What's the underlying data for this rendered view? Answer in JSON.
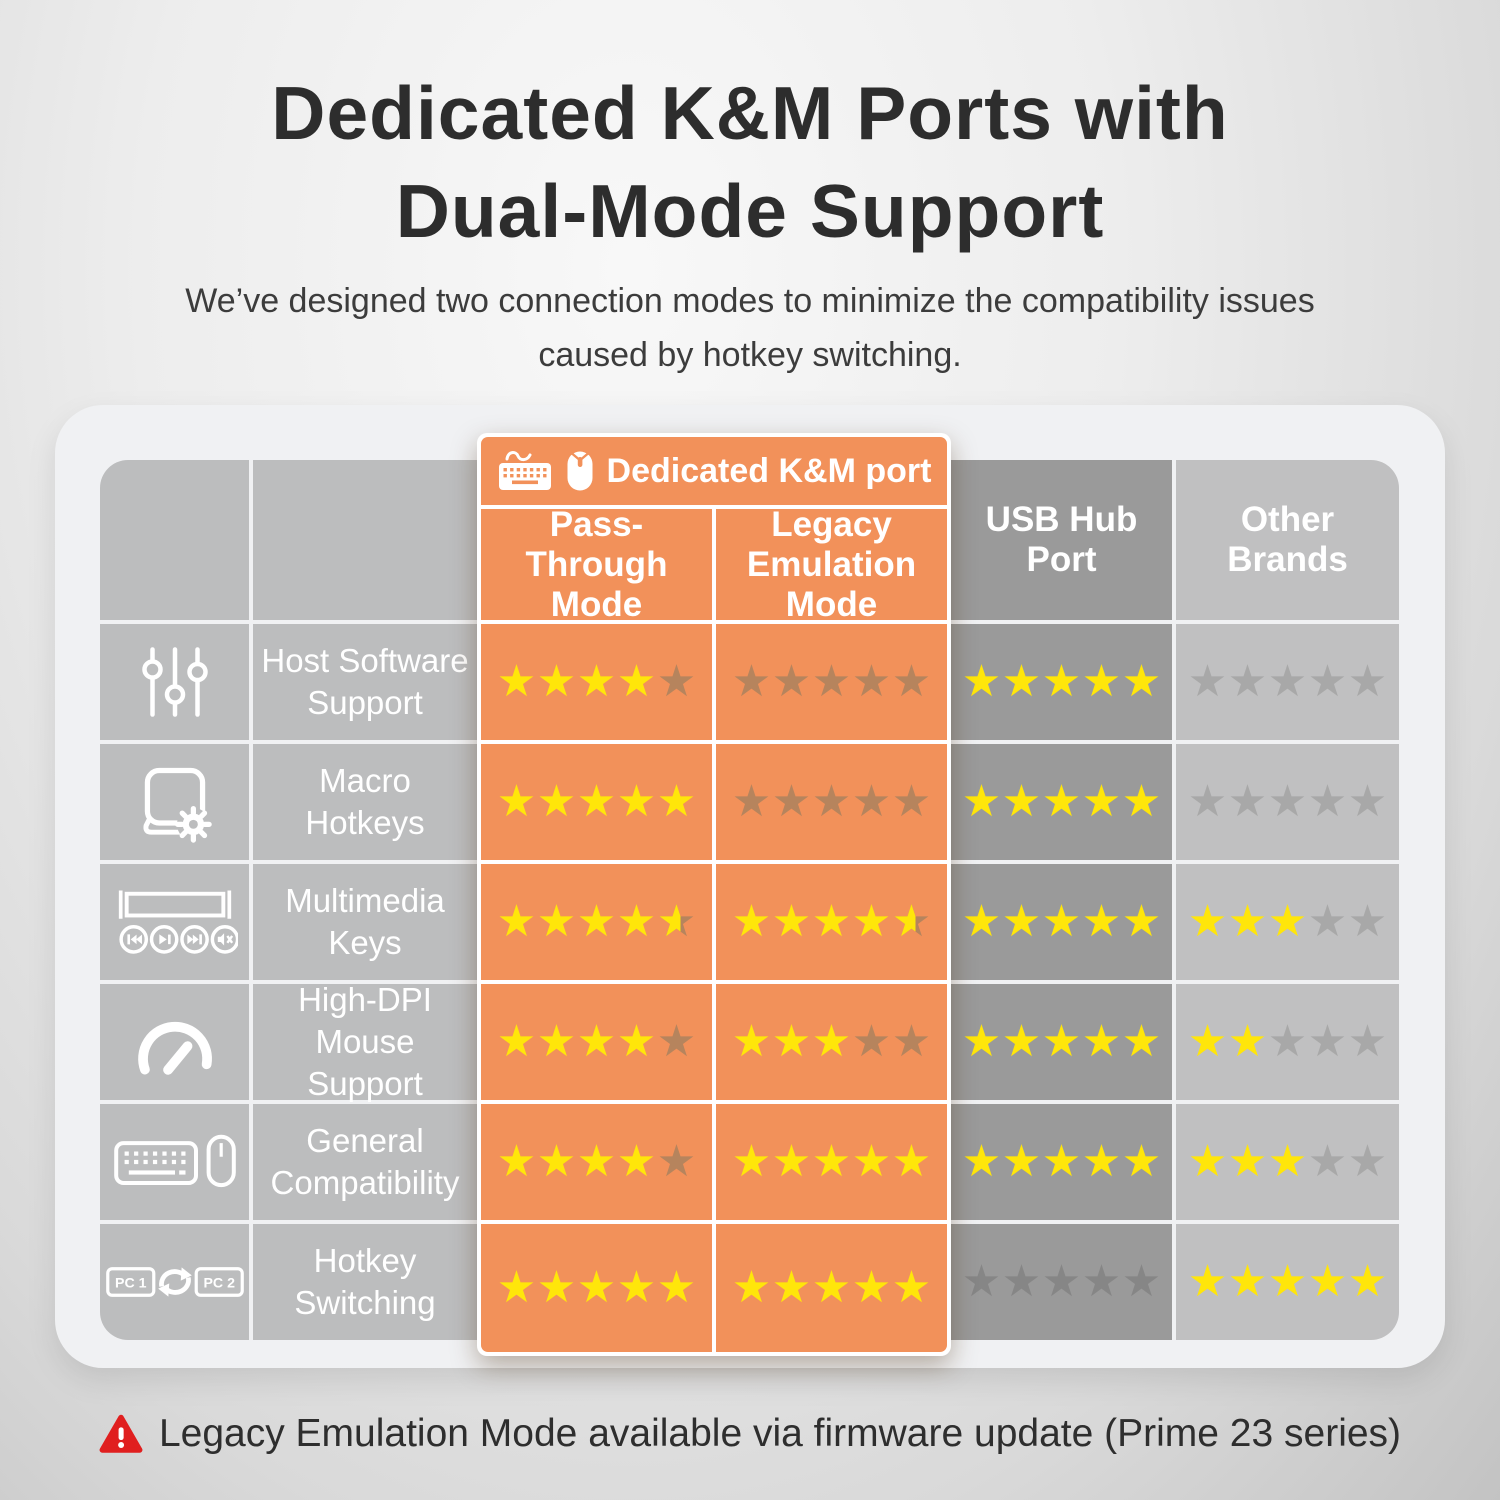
{
  "header": {
    "title_line1": "Dedicated K&M Ports with",
    "title_line2": "Dual-Mode Support",
    "subtitle": "We’ve designed two connection modes to minimize the compatibility issues caused by hotkey switching."
  },
  "table": {
    "group_header": {
      "label": "Dedicated K&M port",
      "icons": [
        "keyboard-icon",
        "mouse-icon"
      ]
    },
    "column_headers": {
      "pass_through": "Pass-Through Mode",
      "legacy": "Legacy Emulation Mode",
      "usb_hub": "USB Hub Port",
      "other_brands": "Other Brands"
    },
    "rating_scale_max": 5,
    "rows": [
      {
        "icon": "sliders-icon",
        "label": "Host Software Support",
        "ratings": {
          "pass_through": 4,
          "legacy": 0,
          "usb_hub": 5,
          "other_brands": 0
        }
      },
      {
        "icon": "macro-icon",
        "label": "Macro Hotkeys",
        "ratings": {
          "pass_through": 5,
          "legacy": 0,
          "usb_hub": 5,
          "other_brands": 0
        }
      },
      {
        "icon": "multimedia-icon",
        "label": "Multimedia Keys",
        "ratings": {
          "pass_through": 4.5,
          "legacy": 4.5,
          "usb_hub": 5,
          "other_brands": 3
        }
      },
      {
        "icon": "gauge-icon",
        "label": "High-DPI Mouse Support",
        "ratings": {
          "pass_through": 4,
          "legacy": 3,
          "usb_hub": 5,
          "other_brands": 2
        }
      },
      {
        "icon": "keyboard-mouse-icon",
        "label": "General Compatibility",
        "ratings": {
          "pass_through": 4,
          "legacy": 5,
          "usb_hub": 5,
          "other_brands": 3
        }
      },
      {
        "icon": "pc-switch-icon",
        "label": "Hotkey Switching",
        "ratings": {
          "pass_through": 5,
          "legacy": 5,
          "usb_hub": 0,
          "other_brands": 5
        }
      }
    ]
  },
  "footnote": {
    "icon": "warning-icon",
    "text": "Legacy Emulation Mode available via firmware update (Prime 23 series)"
  },
  "colors": {
    "accent_orange": "#f2915a",
    "star_filled": "#ffe60a",
    "star_empty_on_orange": "#b6845d",
    "star_empty_on_dark_gray": "#868686",
    "star_empty_on_light_gray": "#a8a8a8",
    "column_gray": "#bcbdbe",
    "usb_column_gray": "#9a9a9a",
    "other_column_gray": "#c0c0c1",
    "warning_red": "#e01f1f",
    "title_text": "#2d2d2d"
  },
  "chart_data": {
    "type": "table",
    "title": "Dedicated K&M Ports with Dual-Mode Support",
    "subtitle": "We’ve designed two connection modes to minimize the compatibility issues caused by hotkey switching.",
    "row_categories": [
      "Host Software Support",
      "Macro Hotkeys",
      "Multimedia Keys",
      "High-DPI Mouse Support",
      "General Compatibility",
      "Hotkey Switching"
    ],
    "columns": [
      "Pass-Through Mode",
      "Legacy Emulation Mode",
      "USB Hub Port",
      "Other Brands"
    ],
    "column_groups": [
      {
        "label": "Dedicated K&M port",
        "columns": [
          "Pass-Through Mode",
          "Legacy Emulation Mode"
        ]
      }
    ],
    "value_unit": "stars out of 5",
    "series": [
      {
        "name": "Pass-Through Mode",
        "values": [
          4,
          5,
          4.5,
          4,
          4,
          5
        ]
      },
      {
        "name": "Legacy Emulation Mode",
        "values": [
          0,
          0,
          4.5,
          3,
          5,
          5
        ]
      },
      {
        "name": "USB Hub Port",
        "values": [
          5,
          5,
          5,
          5,
          5,
          0
        ]
      },
      {
        "name": "Other Brands",
        "values": [
          0,
          0,
          3,
          2,
          3,
          5
        ]
      }
    ],
    "annotation": "Legacy Emulation Mode available via firmware update (Prime 23 series)"
  }
}
